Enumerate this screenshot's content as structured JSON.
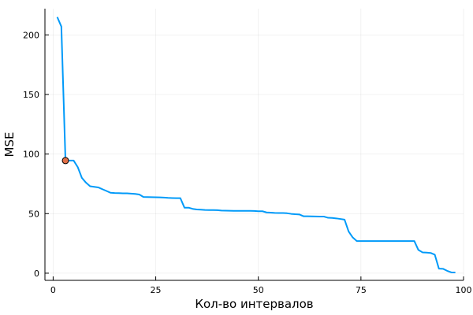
{
  "chart_data": {
    "type": "line",
    "title": "",
    "xlabel": "Кол-во интервалов",
    "ylabel": "MSE",
    "xlim": [
      -2,
      100
    ],
    "ylim": [
      -6,
      222
    ],
    "xticks": [
      "0",
      "25",
      "50",
      "75",
      "100"
    ],
    "yticks": [
      "0",
      "50",
      "100",
      "150",
      "200"
    ],
    "grid": true,
    "legend": "none",
    "series": [
      {
        "color": "#009AF9",
        "x": [
          1,
          2,
          3,
          4,
          5,
          6,
          7,
          8,
          9,
          10,
          11,
          12,
          13,
          14,
          15,
          16,
          17,
          18,
          19,
          20,
          21,
          22,
          23,
          24,
          25,
          26,
          27,
          28,
          29,
          30,
          31,
          32,
          33,
          34,
          35,
          36,
          37,
          38,
          39,
          40,
          41,
          42,
          43,
          44,
          45,
          46,
          47,
          48,
          49,
          50,
          51,
          52,
          53,
          54,
          55,
          56,
          57,
          58,
          59,
          60,
          61,
          62,
          63,
          64,
          65,
          66,
          67,
          68,
          69,
          70,
          71,
          72,
          73,
          74,
          75,
          76,
          77,
          78,
          79,
          80,
          81,
          82,
          83,
          84,
          85,
          86,
          87,
          88,
          89,
          90,
          91,
          92,
          93,
          94,
          95,
          96,
          97,
          98
        ],
        "y": [
          215,
          207,
          95,
          94.5,
          94.5,
          89,
          80,
          76,
          73,
          72.5,
          72,
          70.5,
          69,
          67.5,
          67.3,
          67.2,
          67,
          67,
          66.8,
          66.5,
          66,
          64,
          63.9,
          63.8,
          63.7,
          63.6,
          63.5,
          63.2,
          63.1,
          63,
          63,
          55,
          55,
          54,
          53.5,
          53.3,
          53.1,
          53,
          53,
          52.9,
          52.6,
          52.5,
          52.4,
          52.3,
          52.3,
          52.3,
          52.3,
          52.3,
          52.2,
          52,
          52,
          51,
          50.8,
          50.6,
          50.5,
          50.5,
          50.3,
          49.8,
          49.5,
          49.3,
          47.8,
          47.8,
          47.7,
          47.6,
          47.5,
          47.5,
          46.5,
          46.4,
          46,
          45.5,
          45,
          35,
          30,
          27,
          27,
          27,
          27,
          27,
          27,
          27,
          27,
          27,
          27,
          27,
          27,
          27,
          27,
          27,
          19.5,
          17.5,
          17.3,
          17,
          15.5,
          3.8,
          3.7,
          2,
          0.7,
          0.6
        ]
      }
    ],
    "highlight": {
      "color": "#E26F46",
      "x": 3,
      "y": 94.5
    }
  }
}
